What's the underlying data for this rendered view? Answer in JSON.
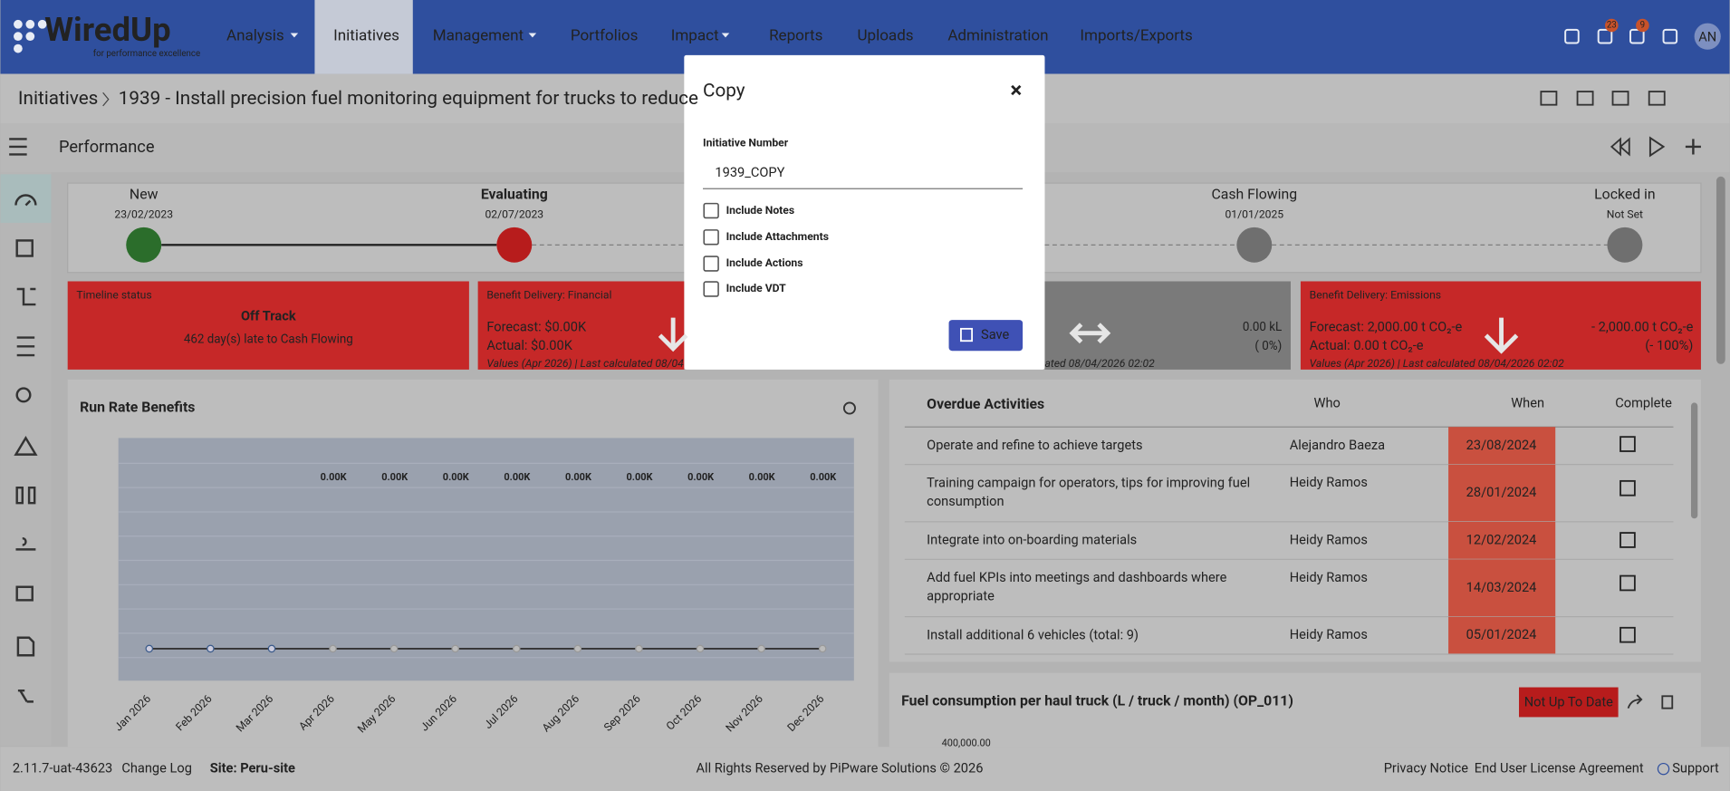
{
  "nav": {
    "logo": "WiredUp",
    "tagline": "for performance excellence",
    "items": [
      "Analysis",
      "Initiatives",
      "Management",
      "Portfolios",
      "Impact",
      "Reports",
      "Uploads",
      "Administration",
      "Imports/Exports"
    ],
    "badges": [
      "23",
      "9"
    ],
    "avatar": "AN"
  },
  "breadcrumb": {
    "root": "Initiatives",
    "title": "1939 - Install precision fuel monitoring equipment for trucks to reduce"
  },
  "section": "Performance",
  "stages": [
    {
      "name": "New",
      "date": "23/02/2023"
    },
    {
      "name": "Evaluating",
      "date": "02/07/2023"
    },
    {
      "name": "Cash Flowing",
      "date": "01/01/2025"
    },
    {
      "name": "Locked in",
      "date": "Not Set"
    }
  ],
  "cards": {
    "timeline": {
      "title": "Timeline status",
      "status": "Off Track",
      "detail": "462 day(s) late to Cash Flowing"
    },
    "financial": {
      "title": "Benefit Delivery: Financial",
      "forecast": "Forecast: $0.00K",
      "actual": "Actual: $0.00K",
      "footer": "Values (Apr 2026) | Last calculated 08/04"
    },
    "volume": {
      "value": "0.00 kL",
      "percent": "( 0%)",
      "footer": "ated 08/04/2026 02:02"
    },
    "emissions": {
      "title": "Benefit Delivery: Emissions",
      "forecast": "Forecast: 2,000.00 t CO₂-e",
      "actual": "Actual: 0.00 t CO₂-e",
      "value": "- 2,000.00 t CO₂-e",
      "percent": "(- 100%)",
      "footer": "Values (Apr 2026) | Last calculated 08/04/2026 02:02"
    }
  },
  "run_rate": {
    "title": "Run Rate Benefits",
    "months": [
      "Jan 2026",
      "Feb 2026",
      "Mar 2026",
      "Apr 2026",
      "May 2026",
      "Jun 2026",
      "Jul 2026",
      "Aug 2026",
      "Sep 2026",
      "Oct 2026",
      "Nov 2026",
      "Dec 2026"
    ],
    "value_labels": [
      "0.00K",
      "0.00K",
      "0.00K",
      "0.00K",
      "0.00K",
      "0.00K",
      "0.00K",
      "0.00K",
      "0.00K"
    ]
  },
  "overdue": {
    "headers": [
      "Overdue Activities",
      "Who",
      "When",
      "Complete"
    ],
    "rows": [
      [
        "Operate and refine to achieve targets",
        "Alejandro Baeza",
        "23/08/2024"
      ],
      [
        "Training campaign for operators, tips for improving fuel|consumption",
        "Heidy Ramos",
        "28/01/2024"
      ],
      [
        "Integrate into on-boarding materials",
        "Heidy Ramos",
        "12/02/2024"
      ],
      [
        "Add fuel KPIs into meetings and dashboards where|appropriate",
        "Heidy Ramos",
        "14/03/2024"
      ],
      [
        "Install additional 6 vehicles (total: 9)",
        "Heidy Ramos",
        "05/01/2024"
      ]
    ]
  },
  "kpi": {
    "title": "Fuel consumption per haul truck (L / truck / month) (OP_011)",
    "status": "Not Up To Date",
    "axis_top": "400,000.00"
  },
  "footer": {
    "version": "2.11.7-uat-43623",
    "changelog": "Change Log",
    "site": "Site: Peru-site",
    "copyright": "All Rights Reserved by PiPware Solutions © 2026",
    "links": [
      "Privacy Notice",
      "End User License Agreement",
      "Support"
    ]
  },
  "modal": {
    "title": "Copy",
    "close": "×",
    "label": "Initiative Number",
    "value": "1939_COPY",
    "options": [
      "Include Notes",
      "Include Attachments",
      "Include Actions",
      "Include VDT"
    ],
    "save": "Save"
  }
}
